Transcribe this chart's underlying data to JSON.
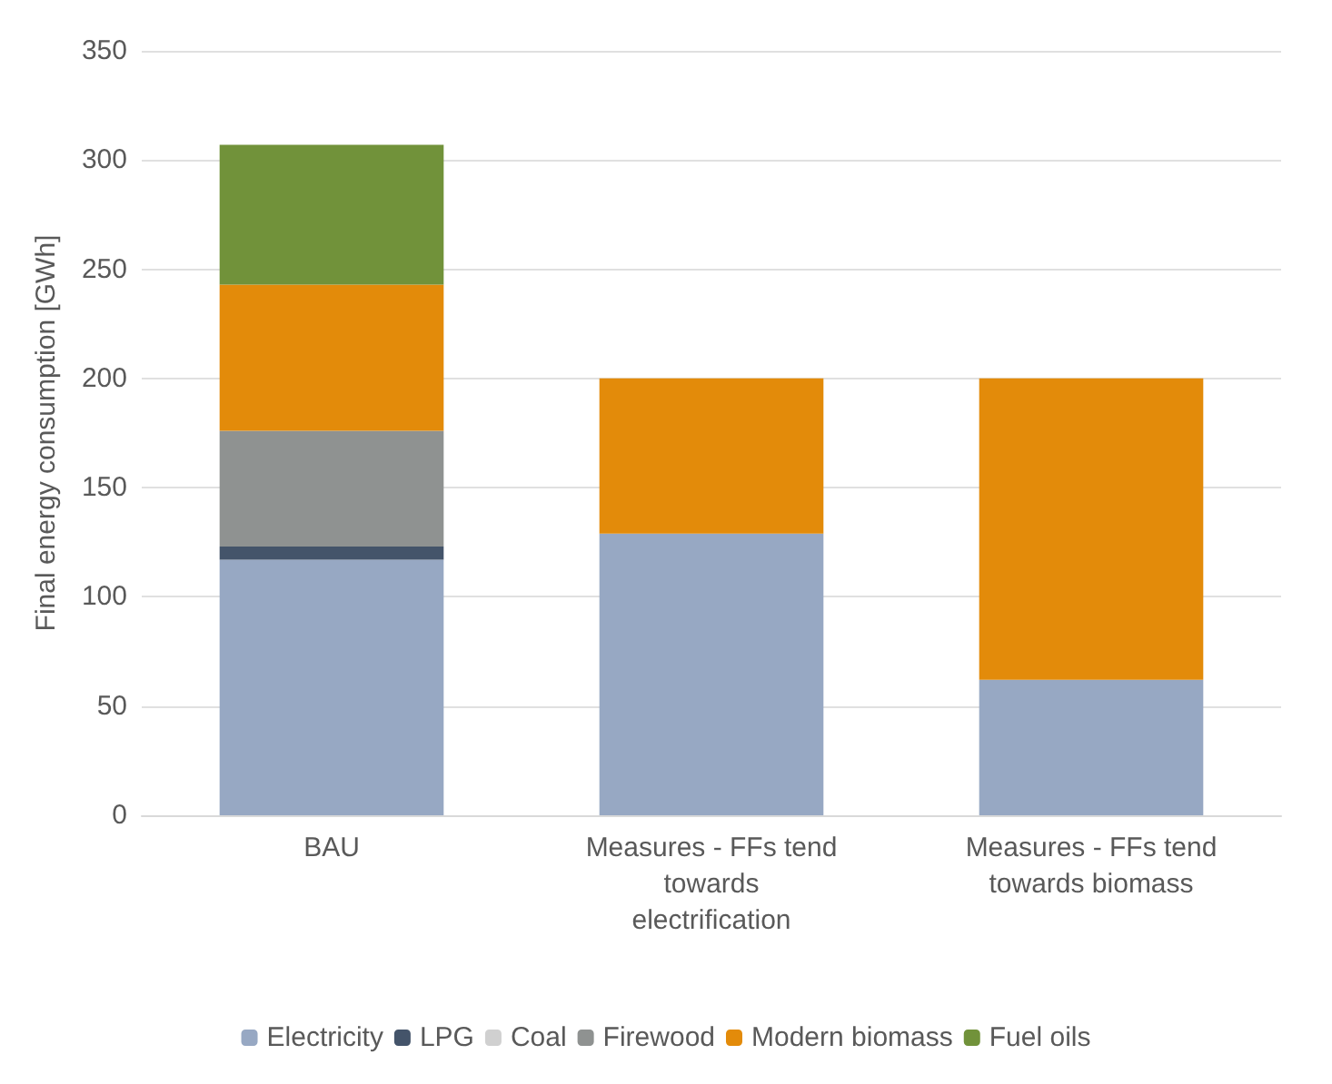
{
  "chart_data": {
    "type": "bar",
    "stacked": true,
    "ylabel": "Final energy consumption [GWh]",
    "categories": [
      "BAU",
      "Measures - FFs tend towards electrification",
      "Measures - FFs tend towards biomass"
    ],
    "series": [
      {
        "name": "Electricity",
        "color": "#97a8c3",
        "values": [
          117,
          129,
          62
        ]
      },
      {
        "name": "LPG",
        "color": "#44546a",
        "values": [
          6,
          0,
          0
        ]
      },
      {
        "name": "Coal",
        "color": "#d0d0d0",
        "values": [
          0,
          0,
          0
        ]
      },
      {
        "name": "Firewood",
        "color": "#8f9291",
        "values": [
          53,
          0,
          0
        ]
      },
      {
        "name": "Modern biomass",
        "color": "#e38b0a",
        "values": [
          67,
          71,
          138
        ]
      },
      {
        "name": "Fuel oils",
        "color": "#71923a",
        "values": [
          64,
          0,
          0
        ]
      }
    ],
    "ylim": [
      0,
      350
    ],
    "yticks": [
      0,
      50,
      100,
      150,
      200,
      250,
      300,
      350
    ],
    "grid": "y",
    "legend": "bottom"
  }
}
